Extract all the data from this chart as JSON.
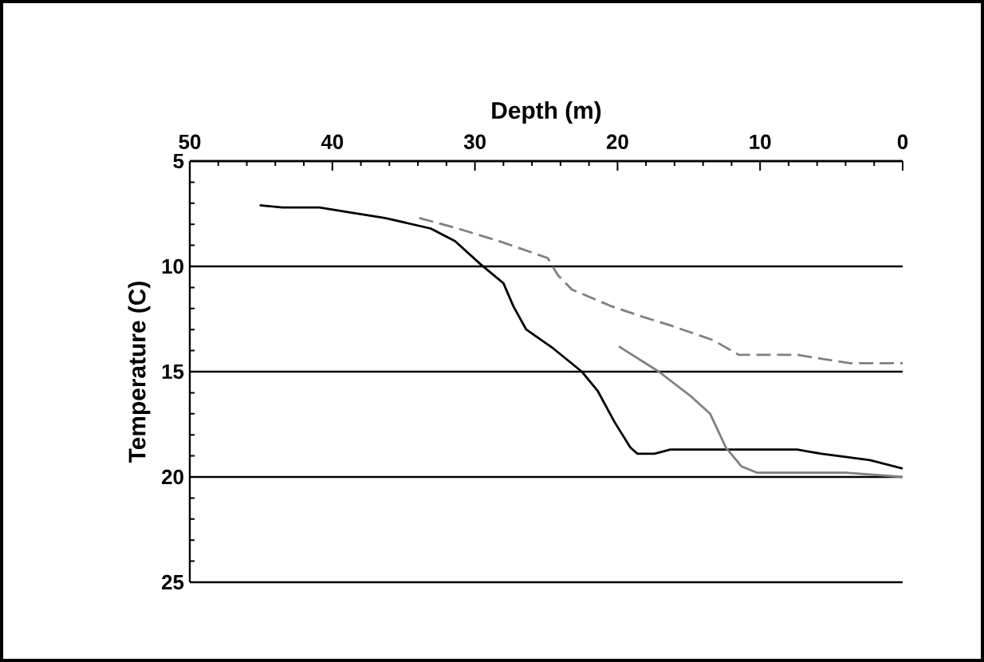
{
  "chart_data": {
    "type": "line",
    "xlabel": "Depth (m)",
    "ylabel": "Temperature (C)",
    "xlim": [
      50,
      0
    ],
    "ylim": [
      25,
      5
    ],
    "xticks": [
      50,
      40,
      30,
      20,
      10,
      0
    ],
    "yticks": [
      5,
      10,
      15,
      20,
      25
    ],
    "grid": "y",
    "marker": "none",
    "series": [
      {
        "color": "#000000",
        "line_style": "solid",
        "x": [
          45.1,
          43.5,
          40.9,
          39.1,
          36.3,
          33.1,
          31.4,
          29.6,
          28.0,
          27.3,
          26.4,
          24.5,
          22.5,
          21.4,
          20.2,
          19.1,
          18.6,
          17.4,
          16.3,
          7.4,
          5.7,
          2.3,
          0
        ],
        "values": [
          7.1,
          7.2,
          7.2,
          7.4,
          7.7,
          8.2,
          8.8,
          9.9,
          10.8,
          11.9,
          13.0,
          13.9,
          15.0,
          15.9,
          17.4,
          18.6,
          18.9,
          18.9,
          18.7,
          18.7,
          18.9,
          19.2,
          19.6
        ]
      },
      {
        "color": "#808080",
        "line_style": "dashed",
        "x": [
          33.9,
          31.2,
          28.3,
          24.9,
          24.2,
          23.2,
          20.4,
          18.2,
          16.3,
          13.3,
          11.5,
          7.4,
          3.7,
          0
        ],
        "values": [
          7.7,
          8.2,
          8.8,
          9.6,
          10.4,
          11.1,
          11.9,
          12.4,
          12.8,
          13.5,
          14.2,
          14.2,
          14.6,
          14.6
        ]
      },
      {
        "color": "#808080",
        "line_style": "solid",
        "x": [
          19.9,
          17.1,
          14.8,
          13.5,
          12.4,
          11.3,
          10.2,
          8.5,
          4.0,
          0
        ],
        "values": [
          13.8,
          15.0,
          16.2,
          17.0,
          18.6,
          19.5,
          19.8,
          19.8,
          19.8,
          20.0
        ]
      }
    ]
  }
}
